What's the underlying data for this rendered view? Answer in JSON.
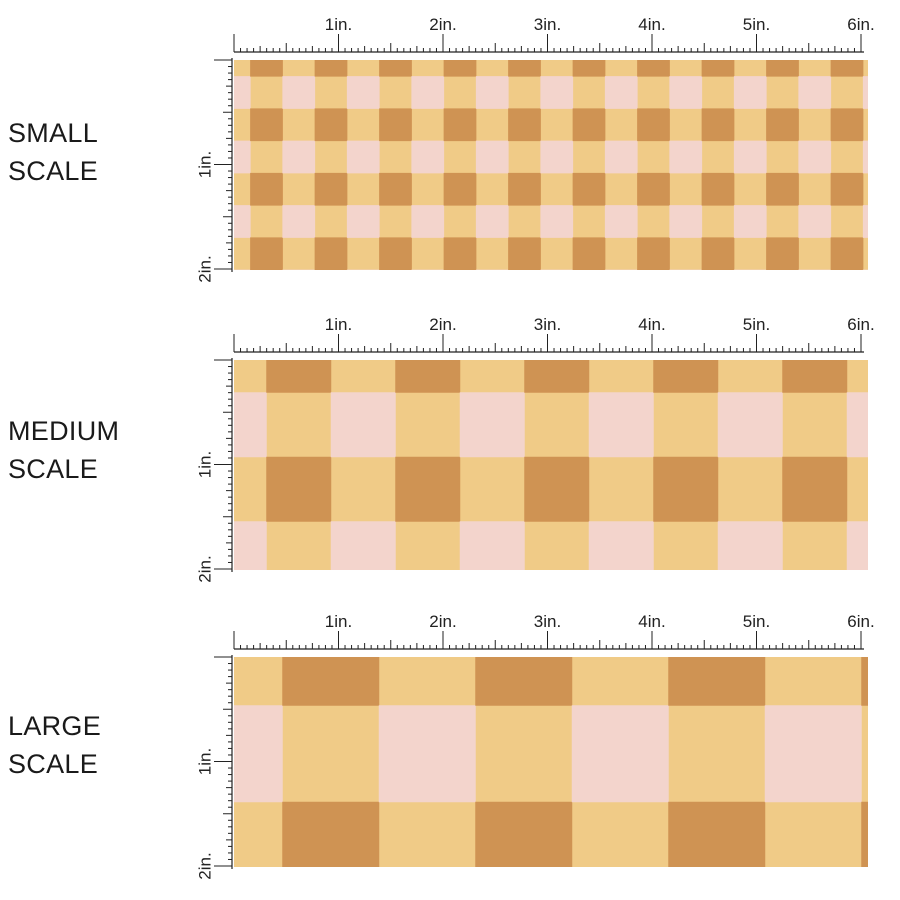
{
  "colors": {
    "light": "#f0cb87",
    "dark": "#cf9353",
    "pink": "#f3d4cc",
    "ruler": "#222222"
  },
  "ruler": {
    "horizontal_labels": [
      "1in.",
      "2in.",
      "3in.",
      "4in.",
      "5in.",
      "6in."
    ],
    "vertical_labels": [
      "1in.",
      "2in."
    ]
  },
  "scales": [
    {
      "label": "SMALL\nSCALE",
      "checks_per_inch": 3.125
    },
    {
      "label": "MEDIUM\nSCALE",
      "checks_per_inch": 1.5625
    },
    {
      "label": "LARGE\nSCALE",
      "checks_per_inch": 1.042
    }
  ]
}
